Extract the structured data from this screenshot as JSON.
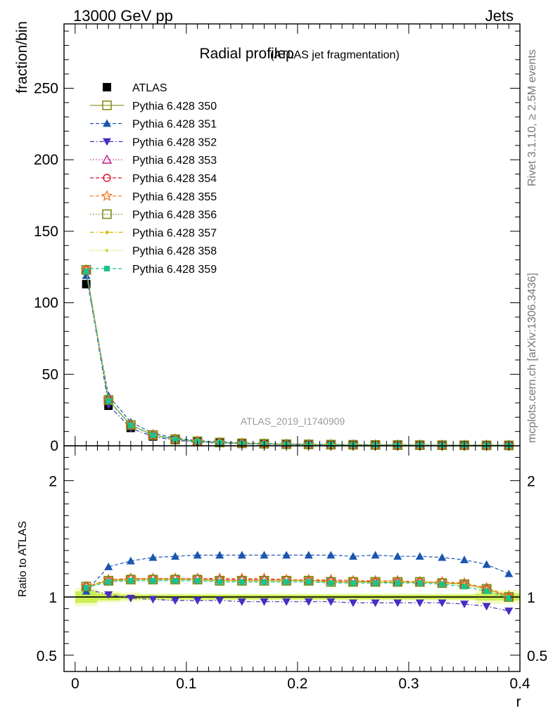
{
  "header": {
    "left": "13000 GeV pp",
    "right": "Jets"
  },
  "side_labels": {
    "rivet": "Rivet 3.1.10, ≥ 2.5M events",
    "mcplots": "mcplots.cern.ch [arXiv:1306.3436]"
  },
  "chart_data": [
    {
      "type": "line",
      "panel": "main",
      "title": "Radial profileρ",
      "title_suffix": "(ATLAS jet fragmentation)",
      "ylabel": "fraction/bin",
      "watermark": "ATLAS_2019_I1740909",
      "ylim": [
        0,
        295
      ],
      "xlim": [
        -0.01,
        0.4
      ],
      "yticks": [
        0,
        50,
        100,
        150,
        200,
        250
      ],
      "ytick_labels": [
        "0",
        "50",
        "100",
        "150",
        "200",
        "250"
      ],
      "legend_position": "top-left",
      "x": [
        0.01,
        0.03,
        0.05,
        0.07,
        0.09,
        0.11,
        0.13,
        0.15,
        0.17,
        0.19,
        0.21,
        0.23,
        0.25,
        0.27,
        0.29,
        0.31,
        0.33,
        0.35,
        0.37,
        0.39
      ],
      "series": [
        {
          "name": "ATLAS",
          "color": "#000000",
          "marker": "square-filled",
          "dash": "none",
          "values": [
            113,
            28,
            12.5,
            6.5,
            4.0,
            2.7,
            2.0,
            1.5,
            1.2,
            0.95,
            0.8,
            0.68,
            0.58,
            0.5,
            0.45,
            0.4,
            0.36,
            0.33,
            0.3,
            0.28
          ]
        },
        {
          "name": "Pythia 6.428 350",
          "color": "#8c8c1f",
          "marker": "square-open",
          "dash": "solid",
          "values": [
            123,
            32,
            14.5,
            7.5,
            4.6,
            3.1,
            2.3,
            1.7,
            1.4,
            1.1,
            0.92,
            0.78,
            0.66,
            0.57,
            0.51,
            0.45,
            0.41,
            0.37,
            0.32,
            0.28
          ]
        },
        {
          "name": "Pythia 6.428 351",
          "color": "#1a56b0",
          "marker": "triangle-up-filled",
          "dash": "dash",
          "values": [
            119,
            35,
            16.6,
            8.8,
            5.4,
            3.6,
            2.7,
            2.0,
            1.6,
            1.28,
            1.07,
            0.91,
            0.78,
            0.68,
            0.6,
            0.53,
            0.48,
            0.43,
            0.38,
            0.33
          ]
        },
        {
          "name": "Pythia 6.428 352",
          "color": "#4a2ec2",
          "marker": "triangle-down-filled",
          "dash": "dashdot",
          "values": [
            121,
            28.5,
            12.4,
            6.4,
            3.9,
            2.6,
            1.9,
            1.45,
            1.15,
            0.9,
            0.76,
            0.64,
            0.55,
            0.47,
            0.42,
            0.37,
            0.33,
            0.3,
            0.27,
            0.25
          ]
        },
        {
          "name": "Pythia 6.428 353",
          "color": "#c01a8c",
          "marker": "triangle-up-open",
          "dash": "dot",
          "values": [
            123,
            32,
            14.5,
            7.5,
            4.6,
            3.1,
            2.3,
            1.7,
            1.4,
            1.1,
            0.92,
            0.78,
            0.66,
            0.57,
            0.51,
            0.45,
            0.41,
            0.37,
            0.32,
            0.28
          ]
        },
        {
          "name": "Pythia 6.428 354",
          "color": "#e0102a",
          "marker": "circle-open",
          "dash": "dash",
          "values": [
            123,
            32,
            14.5,
            7.5,
            4.6,
            3.1,
            2.3,
            1.7,
            1.4,
            1.1,
            0.92,
            0.78,
            0.66,
            0.57,
            0.51,
            0.45,
            0.41,
            0.37,
            0.32,
            0.28
          ]
        },
        {
          "name": "Pythia 6.428 355",
          "color": "#f07820",
          "marker": "star-open",
          "dash": "dash",
          "values": [
            123,
            32,
            14.5,
            7.5,
            4.6,
            3.1,
            2.3,
            1.7,
            1.4,
            1.1,
            0.92,
            0.78,
            0.66,
            0.57,
            0.51,
            0.45,
            0.41,
            0.37,
            0.32,
            0.28
          ]
        },
        {
          "name": "Pythia 6.428 356",
          "color": "#7a8c1a",
          "marker": "square-open",
          "dash": "dot",
          "values": [
            123,
            32,
            14.5,
            7.5,
            4.6,
            3.1,
            2.3,
            1.7,
            1.4,
            1.1,
            0.92,
            0.78,
            0.66,
            0.57,
            0.51,
            0.45,
            0.41,
            0.37,
            0.32,
            0.28
          ]
        },
        {
          "name": "Pythia 6.428 357",
          "color": "#d4b800",
          "marker": "diamond-small",
          "dash": "dashdot",
          "values": [
            123,
            32,
            14.5,
            7.5,
            4.6,
            3.1,
            2.3,
            1.7,
            1.4,
            1.1,
            0.92,
            0.78,
            0.66,
            0.57,
            0.51,
            0.45,
            0.41,
            0.37,
            0.32,
            0.28
          ]
        },
        {
          "name": "Pythia 6.428 358",
          "color": "#b8dc1a",
          "marker": "dot-small",
          "dash": "dot",
          "values": [
            123,
            32,
            14.5,
            7.5,
            4.6,
            3.1,
            2.3,
            1.7,
            1.4,
            1.1,
            0.92,
            0.78,
            0.66,
            0.57,
            0.51,
            0.45,
            0.41,
            0.37,
            0.32,
            0.28
          ]
        },
        {
          "name": "Pythia 6.428 359",
          "color": "#1ac48c",
          "marker": "square-filled-small",
          "dash": "dash",
          "values": [
            122,
            31.5,
            14.3,
            7.4,
            4.5,
            3.05,
            2.27,
            1.68,
            1.38,
            1.08,
            0.91,
            0.77,
            0.65,
            0.56,
            0.5,
            0.44,
            0.4,
            0.36,
            0.31,
            0.28
          ]
        }
      ]
    },
    {
      "type": "line",
      "panel": "ratio",
      "ylabel": "Ratio to ATLAS",
      "xlabel": "r",
      "ylim": [
        0.36,
        2.3
      ],
      "xlim": [
        -0.01,
        0.4
      ],
      "yticks": [
        0.5,
        1,
        2
      ],
      "ytick_labels": [
        "0.5",
        "1",
        "2"
      ],
      "xticks": [
        0,
        0.1,
        0.2,
        0.3,
        0.4
      ],
      "xtick_labels": [
        "0",
        "0.1",
        "0.2",
        "0.3",
        "0.4"
      ],
      "reference_line": 1.0,
      "uncertainty_band": {
        "color_inner": "#ccee55",
        "color_outer": "#f4fcc8",
        "inner": [
          0.05,
          0.03,
          0.02,
          0.02,
          0.02,
          0.02,
          0.02,
          0.02,
          0.02,
          0.02,
          0.02,
          0.02,
          0.02,
          0.02,
          0.02,
          0.02,
          0.02,
          0.02,
          0.03,
          0.03
        ],
        "outer": [
          0.08,
          0.05,
          0.04,
          0.03,
          0.03,
          0.03,
          0.03,
          0.03,
          0.03,
          0.03,
          0.03,
          0.03,
          0.03,
          0.03,
          0.03,
          0.03,
          0.03,
          0.03,
          0.06,
          0.06
        ]
      },
      "x": [
        0.01,
        0.03,
        0.05,
        0.07,
        0.09,
        0.11,
        0.13,
        0.15,
        0.17,
        0.19,
        0.21,
        0.23,
        0.25,
        0.27,
        0.29,
        0.31,
        0.33,
        0.35,
        0.37,
        0.39
      ],
      "series": [
        {
          "name": "Pythia 6.428 350",
          "values": [
            1.09,
            1.14,
            1.15,
            1.15,
            1.15,
            1.15,
            1.14,
            1.14,
            1.14,
            1.14,
            1.14,
            1.13,
            1.13,
            1.13,
            1.13,
            1.13,
            1.12,
            1.11,
            1.07,
            1.0
          ]
        },
        {
          "name": "Pythia 6.428 351",
          "values": [
            1.05,
            1.26,
            1.31,
            1.34,
            1.35,
            1.36,
            1.36,
            1.36,
            1.36,
            1.36,
            1.36,
            1.36,
            1.35,
            1.36,
            1.35,
            1.35,
            1.34,
            1.32,
            1.28,
            1.2
          ]
        },
        {
          "name": "Pythia 6.428 352",
          "values": [
            1.07,
            1.02,
            0.99,
            0.98,
            0.97,
            0.97,
            0.97,
            0.96,
            0.96,
            0.96,
            0.96,
            0.96,
            0.95,
            0.95,
            0.95,
            0.95,
            0.95,
            0.94,
            0.92,
            0.88
          ]
        },
        {
          "name": "Pythia 6.428 353",
          "values": [
            1.09,
            1.14,
            1.16,
            1.16,
            1.16,
            1.16,
            1.15,
            1.15,
            1.15,
            1.15,
            1.14,
            1.14,
            1.14,
            1.13,
            1.13,
            1.13,
            1.13,
            1.11,
            1.07,
            1.0
          ]
        },
        {
          "name": "Pythia 6.428 354",
          "values": [
            1.09,
            1.14,
            1.16,
            1.16,
            1.16,
            1.16,
            1.15,
            1.15,
            1.15,
            1.15,
            1.14,
            1.14,
            1.14,
            1.13,
            1.13,
            1.13,
            1.13,
            1.11,
            1.07,
            1.0
          ]
        },
        {
          "name": "Pythia 6.428 355",
          "values": [
            1.09,
            1.15,
            1.16,
            1.16,
            1.16,
            1.16,
            1.16,
            1.16,
            1.16,
            1.15,
            1.15,
            1.15,
            1.14,
            1.14,
            1.14,
            1.13,
            1.13,
            1.12,
            1.08,
            1.01
          ]
        },
        {
          "name": "Pythia 6.428 356",
          "values": [
            1.09,
            1.14,
            1.15,
            1.15,
            1.15,
            1.15,
            1.14,
            1.14,
            1.14,
            1.14,
            1.14,
            1.13,
            1.13,
            1.13,
            1.13,
            1.13,
            1.12,
            1.11,
            1.07,
            1.0
          ]
        },
        {
          "name": "Pythia 6.428 357",
          "values": [
            1.09,
            1.14,
            1.15,
            1.15,
            1.15,
            1.15,
            1.14,
            1.14,
            1.14,
            1.14,
            1.14,
            1.13,
            1.13,
            1.13,
            1.13,
            1.13,
            1.12,
            1.11,
            1.07,
            1.0
          ]
        },
        {
          "name": "Pythia 6.428 358",
          "values": [
            1.09,
            1.14,
            1.15,
            1.15,
            1.15,
            1.15,
            1.14,
            1.14,
            1.14,
            1.14,
            1.14,
            1.13,
            1.13,
            1.13,
            1.13,
            1.13,
            1.12,
            1.11,
            1.07,
            1.0
          ]
        },
        {
          "name": "Pythia 6.428 359",
          "values": [
            1.08,
            1.13,
            1.14,
            1.14,
            1.14,
            1.14,
            1.13,
            1.13,
            1.13,
            1.13,
            1.13,
            1.12,
            1.12,
            1.12,
            1.12,
            1.12,
            1.11,
            1.09,
            1.05,
            0.99
          ]
        }
      ]
    }
  ]
}
